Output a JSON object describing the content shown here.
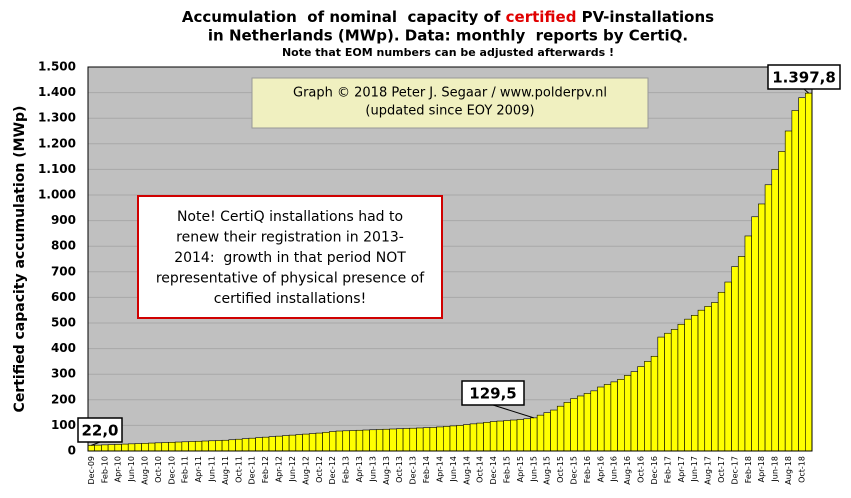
{
  "chart_data": {
    "type": "bar",
    "title_parts": [
      "Accumulation  of nominal  capacity of ",
      "certified",
      " PV-installations"
    ],
    "title_line2": "in Netherlands (MWp). Data: monthly  reports by CertiQ.",
    "subtitle": "Note that EOM numbers can be adjusted afterwards !",
    "credit": [
      "Graph © 2018 Peter J. Segaar / www.polderpv.nl",
      "(updated since EOY 2009)"
    ],
    "note": [
      "Note! CertiQ installations had to",
      "renew their registration in 2013-",
      "2014:  growth in that period NOT",
      "representative of physical presence of",
      "certified installations!"
    ],
    "ylabel": "Certified capacity accumulation (MWp)",
    "color": "#ffff00",
    "ylim": [
      0,
      1500
    ],
    "yticks": [
      0,
      100,
      200,
      300,
      400,
      500,
      600,
      700,
      800,
      900,
      {
        "value": 1000,
        "label": "1.000"
      },
      {
        "value": 1100,
        "label": "1.100"
      },
      {
        "value": 1200,
        "label": "1.200"
      },
      {
        "value": 1300,
        "label": "1.300"
      },
      {
        "value": 1400,
        "label": "1.400"
      },
      {
        "value": 1500,
        "label": "1.500"
      }
    ],
    "grid": true,
    "categories": [
      "Dec-09",
      null,
      "Feb-10",
      null,
      "Apr-10",
      null,
      "Jun-10",
      null,
      "Aug-10",
      null,
      "Oct-10",
      null,
      "Dec-10",
      null,
      "Feb-11",
      null,
      "Apr-11",
      null,
      "Jun-11",
      null,
      "Aug-11",
      null,
      "Oct-11",
      null,
      "Dec-11",
      null,
      "Feb-12",
      null,
      "Apr-12",
      null,
      "Jun-12",
      null,
      "Aug-12",
      null,
      "Oct-12",
      null,
      "Dec-12",
      null,
      "Feb-13",
      null,
      "Apr-13",
      null,
      "Jun-13",
      null,
      "Aug-13",
      null,
      "Oct-13",
      null,
      "Dec-13",
      null,
      "Feb-14",
      null,
      "Apr-14",
      null,
      "Jun-14",
      null,
      "Aug-14",
      null,
      "Oct-14",
      null,
      "Dec-14",
      null,
      "Feb-15",
      null,
      "Apr-15",
      null,
      "Jun-15",
      null,
      "Aug-15",
      null,
      "Oct-15",
      null,
      "Dec-15",
      null,
      "Feb-16",
      null,
      "Apr-16",
      null,
      "Jun-16",
      null,
      "Aug-16",
      null,
      "Oct-16",
      null,
      "Dec-16",
      null,
      "Feb-17",
      null,
      "Apr-17",
      null,
      "Jun-17",
      null,
      "Aug-17",
      null,
      "Oct-17",
      null,
      "Dec-17",
      null,
      "Feb-18",
      null,
      "Apr-18",
      null,
      "Jun-18",
      null,
      "Aug-18",
      null,
      "Oct-18",
      null
    ],
    "values": [
      22.0,
      23,
      24,
      25,
      26,
      27,
      28,
      29,
      30,
      31,
      32,
      33,
      34,
      35,
      36,
      37,
      38,
      39,
      40,
      41,
      42,
      44,
      46,
      48,
      50,
      52,
      54,
      56,
      58,
      60,
      62,
      64,
      66,
      68,
      70,
      73,
      76,
      78,
      79,
      80,
      81,
      82,
      83,
      84,
      85,
      86,
      87,
      88,
      89,
      90,
      91,
      92,
      94,
      96,
      98,
      100,
      103,
      106,
      109,
      112,
      115,
      117,
      119,
      121,
      123,
      126,
      129.5,
      140,
      150,
      160,
      175,
      190,
      205,
      215,
      225,
      235,
      250,
      260,
      270,
      280,
      295,
      310,
      330,
      350,
      370,
      445,
      460,
      475,
      495,
      515,
      530,
      550,
      565,
      580,
      620,
      660,
      720,
      760,
      840,
      915,
      965,
      1040,
      1100,
      1170,
      1250,
      1330,
      1380,
      1397.8
    ],
    "value_labels": [
      "22,0",
      null,
      null,
      null,
      null,
      null,
      null,
      null,
      null,
      null,
      null,
      null,
      null,
      null,
      null,
      null,
      null,
      null,
      null,
      null,
      null,
      null,
      null,
      null,
      null,
      null,
      null,
      null,
      null,
      null,
      null,
      null,
      null,
      null,
      null,
      null,
      null,
      null,
      null,
      null,
      null,
      null,
      null,
      null,
      null,
      null,
      null,
      null,
      null,
      null,
      null,
      null,
      null,
      null,
      null,
      null,
      null,
      null,
      null,
      null,
      null,
      null,
      null,
      null,
      null,
      null,
      "129,5",
      null,
      null,
      null,
      null,
      null,
      null,
      null,
      null,
      null,
      null,
      null,
      null,
      null,
      null,
      null,
      null,
      null,
      null,
      null,
      null,
      null,
      null,
      null,
      null,
      null,
      null,
      null,
      null,
      null,
      null,
      null,
      null,
      null,
      null,
      null,
      null,
      null,
      null,
      null,
      null,
      "1.397,8"
    ]
  }
}
